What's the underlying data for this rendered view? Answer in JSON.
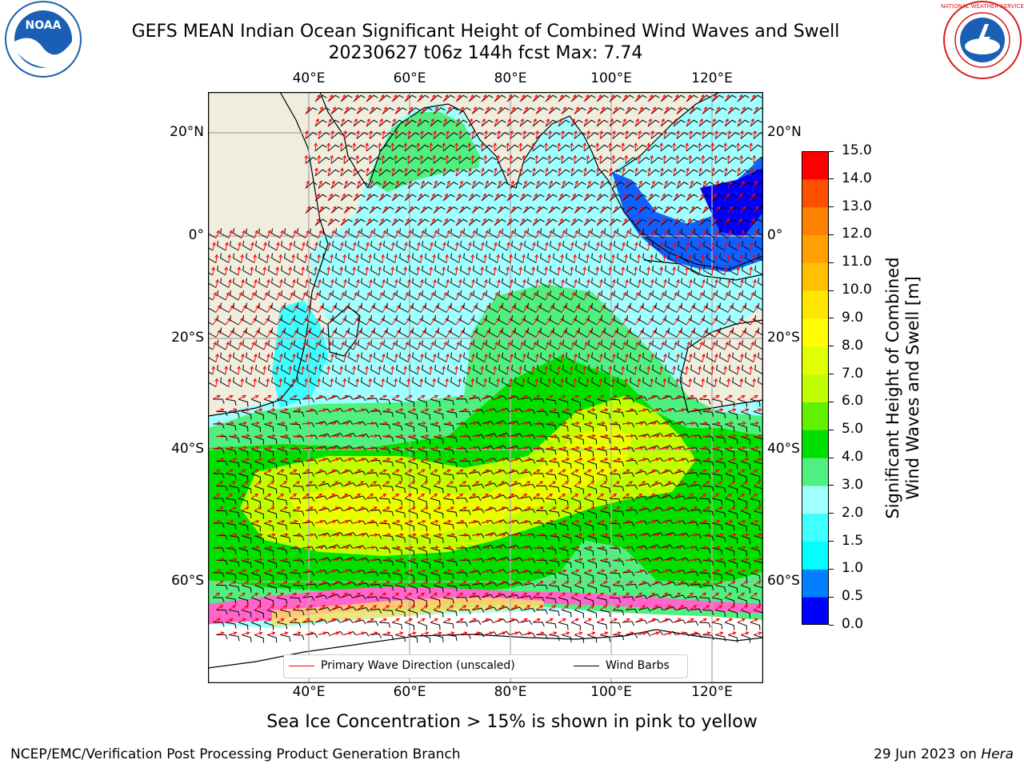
{
  "title": {
    "line1": "GEFS MEAN Indian Ocean Significant Height of Combined Wind Waves and Swell",
    "line2": "20230627 t06z 144h fcst   Max: 7.74"
  },
  "map": {
    "lon_labels": [
      "40°E",
      "60°E",
      "80°E",
      "100°E",
      "120°E"
    ],
    "lat_labels_left": [
      "20°N",
      "0°",
      "20°S",
      "40°S",
      "60°S"
    ],
    "lat_labels_right": [
      "20°N",
      "0°",
      "20°S",
      "40°S",
      "60°S"
    ],
    "lon_range": [
      20,
      130
    ],
    "lat_range": [
      -72,
      27
    ],
    "gridlines": true,
    "colors": {
      "land": "#efedde",
      "coast": "#000000",
      "grid": "#b0b0b0",
      "sea_ice": "#ff66cc",
      "wave_arrow": "#ff0000",
      "wind_barb": "#000000"
    },
    "legend": {
      "wave_label": "Primary Wave Direction (unscaled)",
      "barb_label": "Wind Barbs"
    }
  },
  "colorbar": {
    "label_line1": "Significant Height of Combined",
    "label_line2": "Wind Waves and Swell [m]",
    "ticks": [
      "0.0",
      "0.5",
      "1.0",
      "1.5",
      "2.0",
      "3.0",
      "4.0",
      "5.0",
      "6.0",
      "7.0",
      "8.0",
      "9.0",
      "10.0",
      "11.0",
      "12.0",
      "13.0",
      "14.0",
      "15.0"
    ],
    "colors": [
      "#0000ff",
      "#0080ff",
      "#00ffff",
      "#40ffff",
      "#a0ffff",
      "#50f080",
      "#00e000",
      "#60f000",
      "#c0ff00",
      "#e0ff00",
      "#ffff00",
      "#ffe800",
      "#ffc000",
      "#ffa000",
      "#ff8000",
      "#ff5000",
      "#ff0000"
    ]
  },
  "logos": {
    "left_text": "NOAA",
    "right_text": "NATIONAL WEATHER SERVICE"
  },
  "subtitle": "Sea Ice Concentration > 15% is shown in pink to yellow",
  "footer": {
    "left": "NCEP/EMC/Verification Post Processing Product Generation Branch",
    "right_date": "29 Jun 2023 on",
    "right_host": "Hera"
  }
}
